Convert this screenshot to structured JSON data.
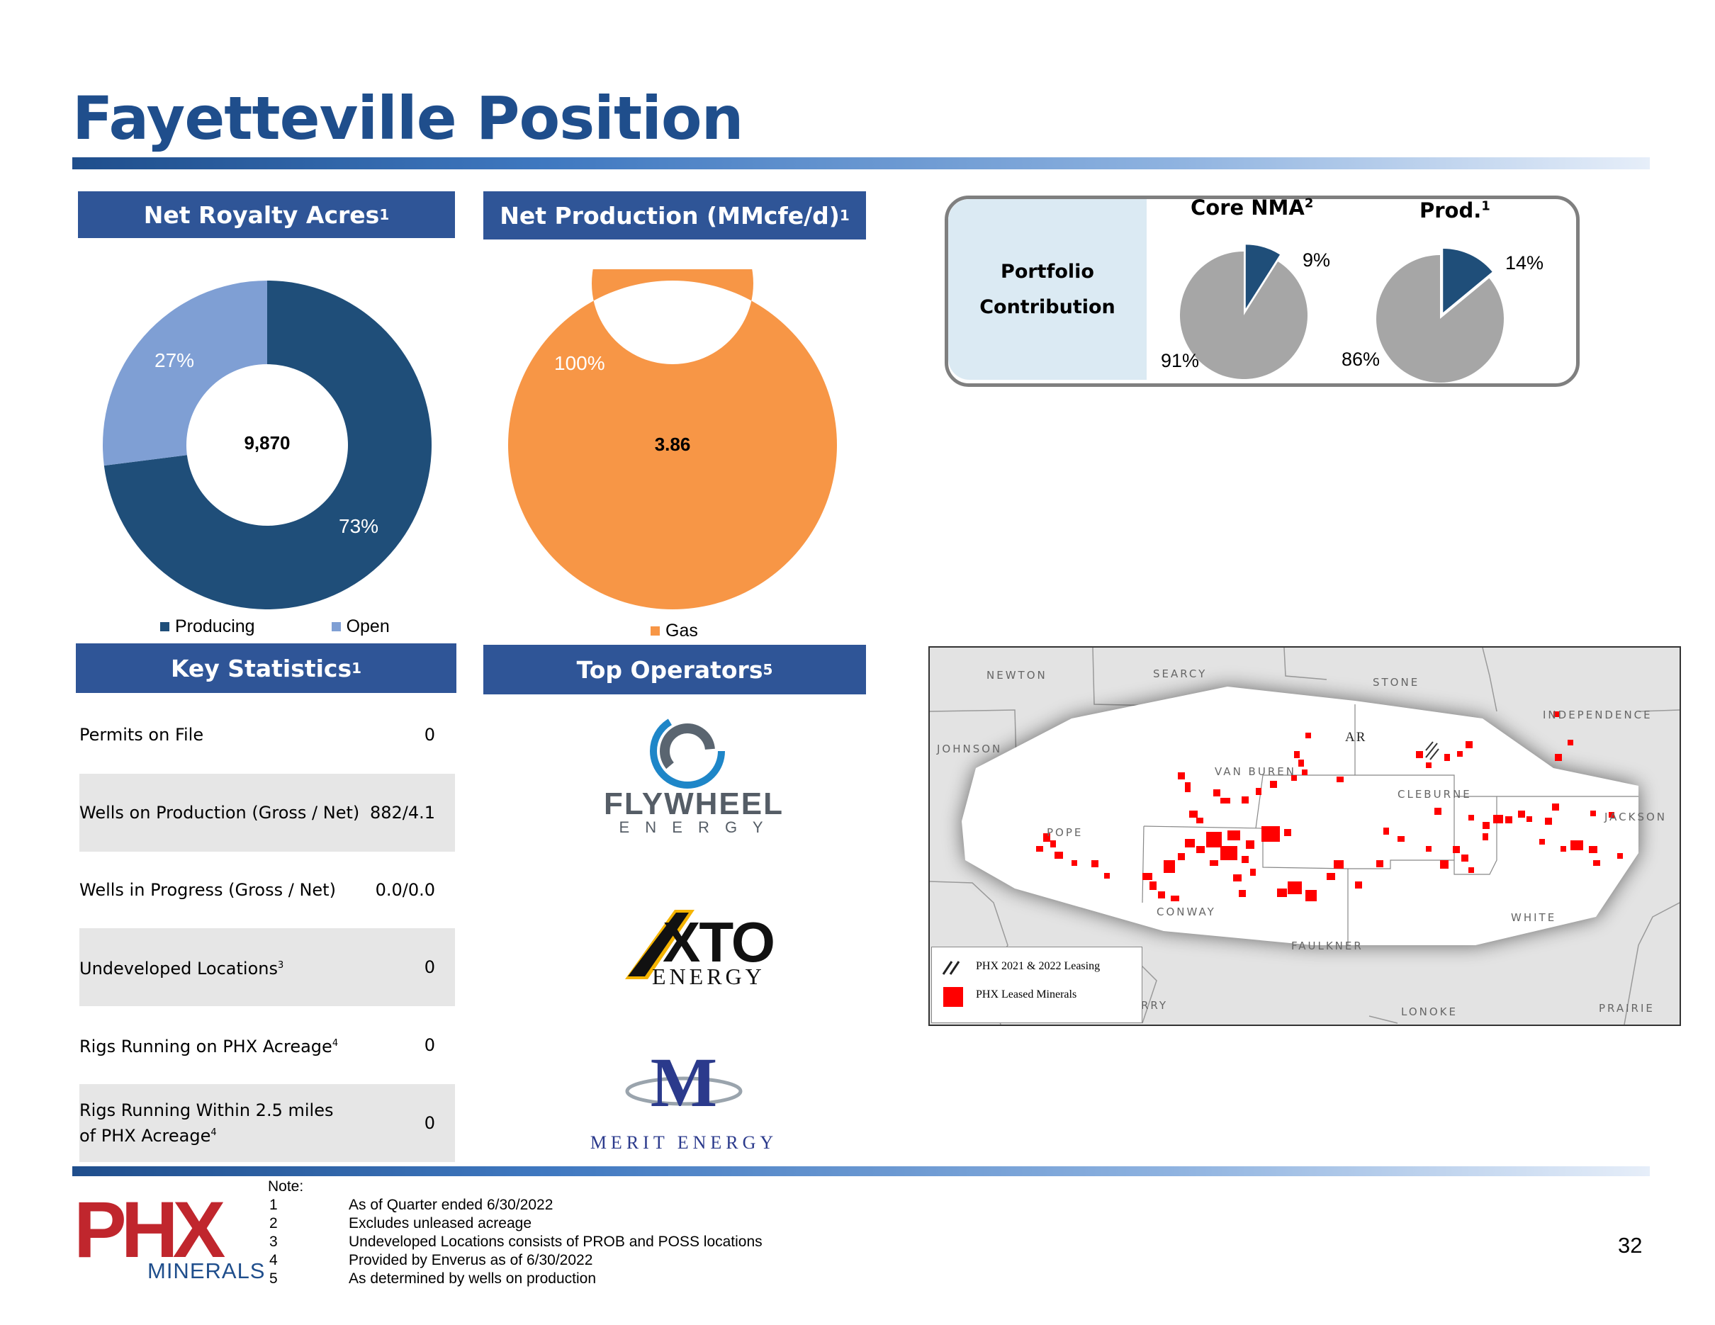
{
  "title": "Fayetteville Position",
  "royalty": {
    "header": "Net Royalty Acres",
    "header_sup": "1",
    "center_value": "9,870",
    "legend": [
      "Producing",
      "Open"
    ]
  },
  "production": {
    "header": "Net Production (MMcfe/d)",
    "header_sup": "1",
    "center_value": "3.86",
    "legend": [
      "Gas"
    ]
  },
  "portfolio": {
    "label_line1": "Portfolio",
    "label_line2": "Contribution",
    "core_title": "Core NMA",
    "core_sup": "2",
    "prod_title": "Prod.",
    "prod_sup": "1"
  },
  "key_stats": {
    "header": "Key Statistics",
    "header_sup": "1",
    "rows": [
      {
        "label": "Permits on File",
        "sup": "",
        "value": "0"
      },
      {
        "label": "Wells on Production (Gross / Net)",
        "sup": "",
        "value": "882/4.1"
      },
      {
        "label": "Wells in Progress  (Gross / Net)",
        "sup": "",
        "value": "0.0/0.0"
      },
      {
        "label": "Undeveloped Locations",
        "sup": "3",
        "value": "0"
      },
      {
        "label": "Rigs Running on PHX Acreage",
        "sup": "4",
        "value": "0"
      },
      {
        "label": "Rigs Running Within 2.5 miles of PHX Acreage",
        "sup": "4",
        "value": "0"
      }
    ]
  },
  "operators": {
    "header": "Top Operators",
    "header_sup": "5",
    "flywheel_name": "FLYWHEEL",
    "flywheel_sub": "E N E R G Y",
    "xto_name": "XTO",
    "xto_sub": "ENERGY",
    "merit_letter": "M",
    "merit_sub": "MERIT ENERGY"
  },
  "map": {
    "counties": [
      "NEWTON",
      "SEARCY",
      "STONE",
      "INDEPENDENCE",
      "JOHNSON",
      "VAN BUREN",
      "CLEBURNE",
      "JACKSON",
      "POPE",
      "CONWAY",
      "FAULKNER",
      "WHITE",
      "LONOKE",
      "PRAIRIE",
      "RRY"
    ],
    "state": "AR",
    "legend_leasing": "PHX 2021 & 2022 Leasing",
    "legend_leased": "PHX Leased Minerals",
    "leased_color": "#ff0000"
  },
  "notes": {
    "heading": "Note:",
    "items": [
      {
        "n": "1",
        "text": "As of Quarter ended 6/30/2022"
      },
      {
        "n": "2",
        "text": "Excludes unleased acreage"
      },
      {
        "n": "3",
        "text": "Undeveloped Locations consists of PROB and POSS locations"
      },
      {
        "n": "4",
        "text": "Provided by Enverus as of 6/30/2022"
      },
      {
        "n": "5",
        "text": "As determined by wells on production"
      }
    ]
  },
  "logo": {
    "main": "PHX",
    "sub": "MINERALS"
  },
  "page_number": "32",
  "colors": {
    "navy": "#1f4e8c",
    "header": "#2f5597",
    "producing": "#1f4e79",
    "open": "#7f9fd4",
    "gas": "#f79646",
    "pie_gray": "#a6a6a6",
    "pie_slice": "#1f4e79"
  },
  "chart_data": [
    {
      "type": "pie",
      "title": "Net Royalty Acres",
      "categories": [
        "Producing",
        "Open"
      ],
      "values": [
        73,
        27
      ],
      "labels": [
        "73%",
        "27%"
      ],
      "donut": true
    },
    {
      "type": "pie",
      "title": "Net Production (MMcfe/d)",
      "categories": [
        "Gas"
      ],
      "values": [
        100
      ],
      "labels": [
        "100%"
      ],
      "donut": true
    },
    {
      "type": "pie",
      "title": "Core NMA",
      "values": [
        9,
        91
      ],
      "labels": [
        "9%",
        "91%"
      ]
    },
    {
      "type": "pie",
      "title": "Prod.",
      "values": [
        14,
        86
      ],
      "labels": [
        "14%",
        "86%"
      ]
    }
  ]
}
